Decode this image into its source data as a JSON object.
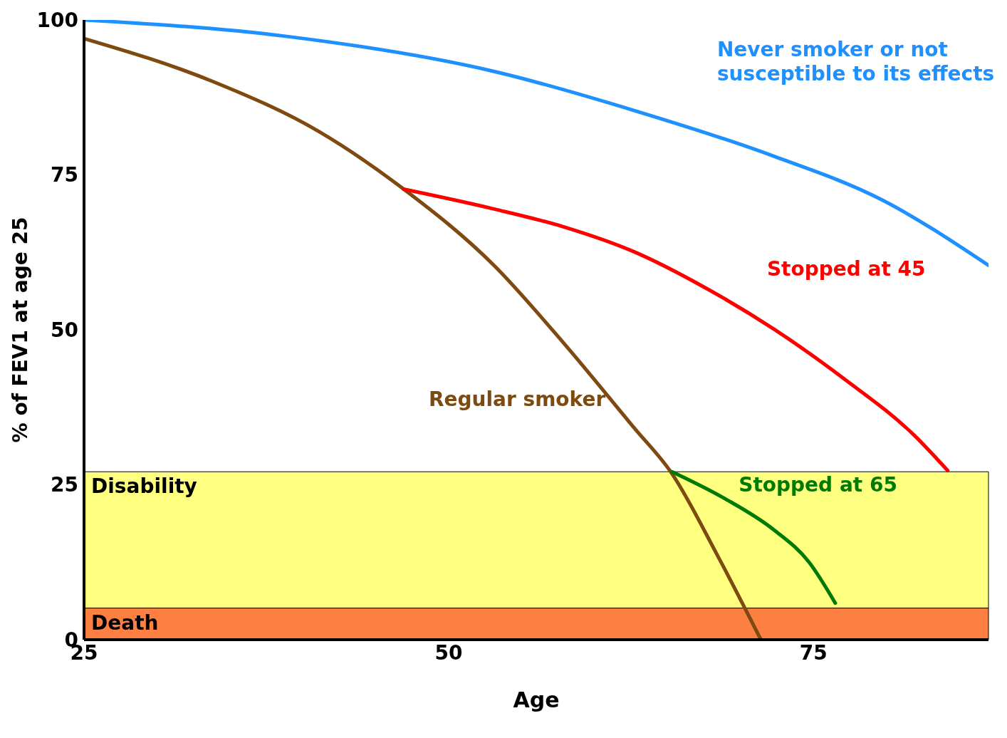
{
  "chart_data": {
    "type": "line",
    "xlabel": "Age",
    "ylabel": "% of FEV1 at age 25",
    "xlim": [
      25,
      87
    ],
    "xticks": [
      25,
      50,
      75
    ],
    "ylim": [
      0,
      100
    ],
    "yticks": [
      0,
      25,
      50,
      75,
      100
    ],
    "marker": "none",
    "line_style": "solid",
    "series": [
      {
        "name": "Never smoker or not susceptible to its effects",
        "color": "#1e90ff",
        "x": [
          25,
          38.7,
          53.1,
          62.7,
          72.3,
          79.5,
          87
        ],
        "values": [
          100,
          97.4,
          91.7,
          85.4,
          78,
          71.2,
          60.4
        ]
      },
      {
        "name": "Regular smoker",
        "color": "#7f4a10",
        "x": [
          25,
          33.9,
          41.1,
          46.8,
          53.1,
          57.9,
          62.7,
          65.3,
          68.4,
          71.4
        ],
        "values": [
          97,
          90,
          82,
          72.9,
          60.4,
          47.8,
          34.2,
          26.8,
          13.7,
          0
        ]
      },
      {
        "name": "Stopped at 45",
        "color": "#ff0000",
        "x": [
          46.9,
          53.1,
          57.9,
          62.7,
          67.5,
          72.3,
          77.1,
          81.9,
          84.2
        ],
        "values": [
          72.7,
          69.5,
          66.6,
          62.6,
          56.9,
          50.1,
          42.1,
          33,
          27.3
        ]
      },
      {
        "name": "Stopped at 65",
        "color": "#007a00",
        "x": [
          65.3,
          68.9,
          72.3,
          74.7,
          76.5
        ],
        "values": [
          27.1,
          22.8,
          17.7,
          12.5,
          5.9
        ]
      }
    ],
    "bands": [
      {
        "axis": "y",
        "from": 5.1,
        "to": 27.1,
        "label": "Disability",
        "color": "#ffff80"
      },
      {
        "axis": "y",
        "from": 0,
        "to": 5.1,
        "label": "Death",
        "color": "#fd8042"
      }
    ]
  }
}
